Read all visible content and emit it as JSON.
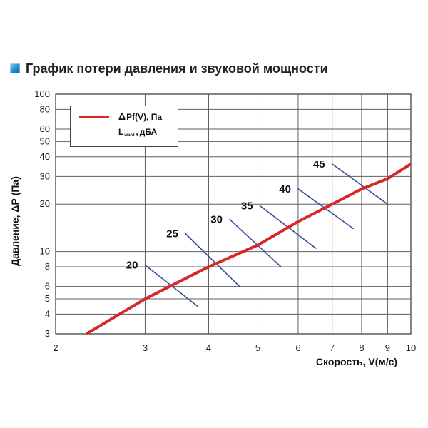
{
  "header": {
    "title": "График потери давления и звуковой мощности",
    "icon": "square-bullet-icon"
  },
  "legend": {
    "pressure_label": "Pf(V), Па",
    "pressure_prefix": "Δ",
    "noise_main": "L",
    "noise_sub": "wao1",
    "noise_tail": "дБА"
  },
  "colors": {
    "pressure_line": "#d72828",
    "noise_lines": "#394c9a",
    "frame": "#333333",
    "grid": "#5f5f5f",
    "title_icon": "#1f8fd1"
  },
  "chart_data": {
    "type": "line",
    "title": "График потери давления и звуковой мощности",
    "xlabel": "Скорость, V(м/с)",
    "ylabel": "Давление, ΔР (Па)",
    "x_scale": "log",
    "y_scale": "log",
    "xlim": [
      2,
      10
    ],
    "ylim": [
      3,
      100
    ],
    "x_ticks": [
      2,
      3,
      4,
      5,
      6,
      7,
      8,
      9,
      10
    ],
    "y_ticks": [
      3,
      4,
      5,
      6,
      8,
      10,
      20,
      30,
      40,
      50,
      60,
      80,
      100
    ],
    "grid": true,
    "legend": {
      "position": "top-left",
      "entries": [
        {
          "name": "ΔPf(V), Па",
          "style": "red-thick-line"
        },
        {
          "name": "Lwao1, дБА",
          "style": "blue-thin-line"
        }
      ]
    },
    "series": [
      {
        "name": "ΔPf(V), Па",
        "kind": "pressure",
        "points": [
          {
            "x": 2.3,
            "y": 3.0
          },
          {
            "x": 3.0,
            "y": 5.0
          },
          {
            "x": 4.0,
            "y": 8.0
          },
          {
            "x": 5.0,
            "y": 11.0
          },
          {
            "x": 6.0,
            "y": 15.5
          },
          {
            "x": 7.0,
            "y": 20.0
          },
          {
            "x": 8.0,
            "y": 25.0
          },
          {
            "x": 9.0,
            "y": 29.0
          },
          {
            "x": 10.0,
            "y": 36.0
          }
        ]
      }
    ],
    "noise_levels": [
      {
        "label": "20",
        "x1": 3.0,
        "y1": 8.2,
        "x2": 3.8,
        "y2": 4.5
      },
      {
        "label": "25",
        "x1": 3.6,
        "y1": 13.0,
        "x2": 4.6,
        "y2": 6.0
      },
      {
        "label": "30",
        "x1": 4.4,
        "y1": 16.0,
        "x2": 5.55,
        "y2": 8.0
      },
      {
        "label": "35",
        "x1": 5.05,
        "y1": 19.5,
        "x2": 6.5,
        "y2": 10.5
      },
      {
        "label": "40",
        "x1": 6.0,
        "y1": 25.0,
        "x2": 7.7,
        "y2": 14.0
      },
      {
        "label": "45",
        "x1": 7.0,
        "y1": 36.0,
        "x2": 9.0,
        "y2": 20.0
      }
    ]
  }
}
